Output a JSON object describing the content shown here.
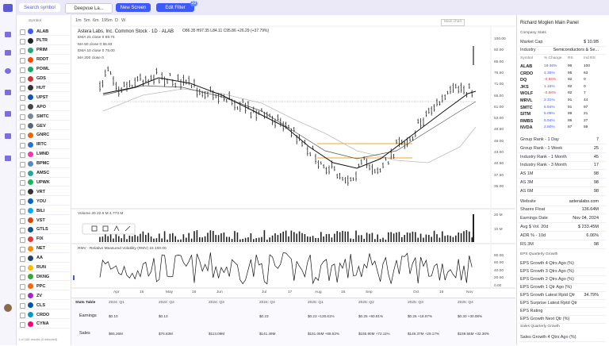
{
  "top_bar": {
    "search": "Search symbol",
    "screen": "Deepvue La...",
    "new_screen": "New Screen",
    "edit_filter": "Edit Filter",
    "filter_count": "23"
  },
  "watchlist": {
    "header": "Symbol",
    "symbols": [
      "ALAB",
      "PLTR",
      "PRIM",
      "RDDT",
      "POWL",
      "GDS",
      "HUT",
      "UPST",
      "APO",
      "SMTC",
      "GEV",
      "GNRC",
      "IRTC",
      "LMND",
      "BPMC",
      "AMSC",
      "UPWK",
      "VRT",
      "YOU",
      "BILI",
      "VST",
      "GTLS",
      "FIX",
      "NET",
      "AA",
      "RUN",
      "DKNG",
      "PPC",
      "ZV",
      "CLS",
      "CRDO",
      "CYNA"
    ],
    "footer": "1 of 166 results (0 selected)"
  },
  "chart": {
    "timeframes": [
      "1m",
      "5m",
      "6m",
      "195m",
      "D",
      "W"
    ],
    "title": "Astera Labs, Inc. Common Stock · 1D · ALAB",
    "ohlc": "O86.35 H97.35 L84.11 C95.86 +26.29 (+37.79%)",
    "indicators": [
      "EMA 21 close 0  69.74",
      "MA 50 close 0  55.93",
      "EMA 10 close 0  75.00",
      "MA 200 close 0"
    ],
    "main_chart_label": "Main chart",
    "price_axis": [
      "100.00",
      "92.00",
      "85.00",
      "76.50",
      "71.00",
      "65.00",
      "61.00",
      "53.00",
      "49.50",
      "46.00",
      "43.00",
      "40.50",
      "37.50",
      "35.00"
    ],
    "volume_label": "Volume 20  22.6 M  4.773 M",
    "volume_axis": [
      "20 M",
      "10 M"
    ],
    "rmv_label": "RMV - Relative Measured Volatility (RMV) 15  100.00",
    "rmv_axis": [
      "80.00",
      "60.00",
      "40.00",
      "20.00",
      "0.00"
    ],
    "x_axis": [
      "Apr",
      "16",
      "May",
      "16",
      "Jun",
      "Jul",
      "17",
      "Aug",
      "16",
      "Sep",
      "Oct",
      "16",
      "Nov"
    ]
  },
  "stats_table": {
    "header": [
      "Stats Table",
      "2024: Q1",
      "2024: Q2",
      "2024: Q3",
      "2024: Q4",
      "2025: Q1",
      "2025: Q2",
      "2025: Q3",
      "2025: Q4"
    ],
    "rows": [
      {
        "label": "Earnings",
        "cells": [
          "$0.10",
          "$0.13",
          null,
          "$0.23",
          "$0.23 +130.61%",
          "$0.25 +60.91%",
          "$0.26 +18.97%",
          "$0.30 +30.08%"
        ]
      },
      {
        "label": "Sales",
        "cells": [
          "$65.26M",
          "$76.83M",
          "$113.09M",
          "$141.49M",
          "$151.05M +88.52%",
          "$155.90M +72.11%",
          "$146.37M +29.17%",
          "$159.56M +32.36%"
        ]
      }
    ]
  },
  "right_panel": {
    "title": "Richard Moglen Main Panel",
    "company_stats": "Company Stats",
    "market_cap": {
      "label": "Market Cap",
      "value": "$ 10.9B"
    },
    "industry": {
      "label": "Industry",
      "value": "Semiconductors & Se..."
    },
    "peer_header": [
      "Symbol",
      "% Change",
      "RS",
      "Ind RS"
    ],
    "peers": [
      [
        "ALAB",
        "18.46%",
        "96",
        "100"
      ],
      [
        "CRDO",
        "4.35%",
        "95",
        "63"
      ],
      [
        "DQ",
        "-0.56%",
        "92",
        "0"
      ],
      [
        "JKS",
        "1.15%",
        "92",
        "0"
      ],
      [
        "WOLF",
        "-0.58%",
        "92",
        "7"
      ],
      [
        "MRVL",
        "2.31%",
        "91",
        "44"
      ],
      [
        "SMTC",
        "6.94%",
        "91",
        "97"
      ],
      [
        "SITM",
        "5.09%",
        "89",
        "21"
      ],
      [
        "RMBS",
        "5.94%",
        "86",
        "27"
      ],
      [
        "NVDA",
        "2.80%",
        "87",
        "59"
      ]
    ],
    "stats": [
      {
        "label": "Group Rank - 1 Day",
        "value": "7"
      },
      {
        "label": "Group Rank - 1 Week",
        "value": "25"
      },
      {
        "label": "Industry Rank - 1 Month",
        "value": "45"
      },
      {
        "label": "Industry Rank - 3 Month",
        "value": "17"
      },
      {
        "label": "AS 1M",
        "value": "98"
      },
      {
        "label": "AS 3M",
        "value": "98"
      },
      {
        "label": "AS 6M",
        "value": "98"
      },
      {
        "label": "Website",
        "value": "asteralabs.com"
      },
      {
        "label": "Shares Float",
        "value": "136.64M"
      },
      {
        "label": "Earnings Date",
        "value": "Nov 04, 2024"
      },
      {
        "label": "Avg $ Vol. 20d",
        "value": "$ 233.45M"
      },
      {
        "label": "ADR % - 10d",
        "value": "6.06%"
      },
      {
        "label": "RS 3M",
        "value": "98"
      }
    ],
    "eps_section": "EPS Quarterly Growth",
    "eps": [
      {
        "label": "EPS Growth 4 Qtrs Ago (%)"
      },
      {
        "label": "EPS Growth 3 Qtrs Ago (%)"
      },
      {
        "label": "EPS Growth 2 Qtrs Ago (%)"
      },
      {
        "label": "EPS Growth 1 Qtr Ago (%)"
      },
      {
        "label": "EPS Growth Latest Rptd Qtr",
        "value": "34.79%"
      },
      {
        "label": "EPS Surprise Latest Rptd Qtr"
      },
      {
        "label": "EPS Rating"
      },
      {
        "label": "EPS Growth Next Qtr (%)"
      }
    ],
    "sales_section": "Sales Quarterly Growth",
    "sales": [
      {
        "label": "Sales Growth 4 Qtrs Ago (%)"
      }
    ]
  }
}
